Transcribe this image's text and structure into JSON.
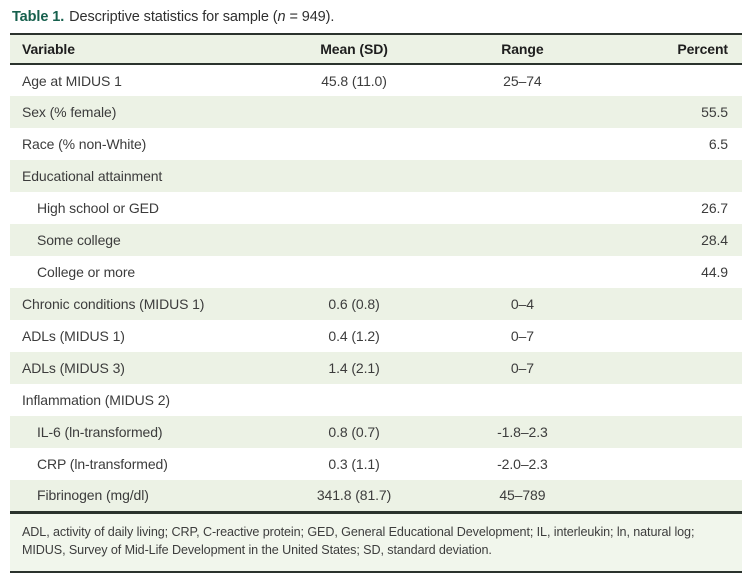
{
  "caption": {
    "label": "Table 1.",
    "text_before_n": "Descriptive statistics for sample (",
    "n": "n",
    "text_after_n": " = 949)."
  },
  "table": {
    "columns": [
      "Variable",
      "Mean (SD)",
      "Range",
      "Percent"
    ],
    "rows": [
      {
        "variable": "Age at MIDUS 1",
        "indent": false,
        "mean_sd": "45.8 (11.0)",
        "range": "25–74",
        "percent": ""
      },
      {
        "variable": "Sex (% female)",
        "indent": false,
        "mean_sd": "",
        "range": "",
        "percent": "55.5"
      },
      {
        "variable": "Race (% non-White)",
        "indent": false,
        "mean_sd": "",
        "range": "",
        "percent": "6.5"
      },
      {
        "variable": "Educational attainment",
        "indent": false,
        "mean_sd": "",
        "range": "",
        "percent": ""
      },
      {
        "variable": "High school or GED",
        "indent": true,
        "mean_sd": "",
        "range": "",
        "percent": "26.7"
      },
      {
        "variable": "Some college",
        "indent": true,
        "mean_sd": "",
        "range": "",
        "percent": "28.4"
      },
      {
        "variable": "College or more",
        "indent": true,
        "mean_sd": "",
        "range": "",
        "percent": "44.9"
      },
      {
        "variable": "Chronic conditions (MIDUS 1)",
        "indent": false,
        "mean_sd": "0.6 (0.8)",
        "range": "0–4",
        "percent": ""
      },
      {
        "variable": "ADLs (MIDUS 1)",
        "indent": false,
        "mean_sd": "0.4 (1.2)",
        "range": "0–7",
        "percent": ""
      },
      {
        "variable": "ADLs (MIDUS 3)",
        "indent": false,
        "mean_sd": "1.4 (2.1)",
        "range": "0–7",
        "percent": ""
      },
      {
        "variable": "Inflammation (MIDUS 2)",
        "indent": false,
        "mean_sd": "",
        "range": "",
        "percent": ""
      },
      {
        "variable": "IL-6 (ln-transformed)",
        "indent": true,
        "mean_sd": "0.8 (0.7)",
        "range": "-1.8–2.3",
        "percent": ""
      },
      {
        "variable": "CRP (ln-transformed)",
        "indent": true,
        "mean_sd": "0.3 (1.1)",
        "range": "-2.0–2.3",
        "percent": ""
      },
      {
        "variable": "Fibrinogen (mg/dl)",
        "indent": true,
        "mean_sd": "341.8 (81.7)",
        "range": "45–789",
        "percent": ""
      }
    ]
  },
  "footnote": "ADL, activity of daily living; CRP, C-reactive protein; GED, General Educational Development; IL, interleukin; ln, natural log; MIDUS, Survey of Mid-Life Development in the United States; SD, standard deviation.",
  "colors": {
    "accent_green": "#16604d",
    "row_stripe_green": "#ecf2e5",
    "footnote_green": "#f1f6ec",
    "border_dark": "#2b332d",
    "text_dark": "#3c3c3c"
  }
}
